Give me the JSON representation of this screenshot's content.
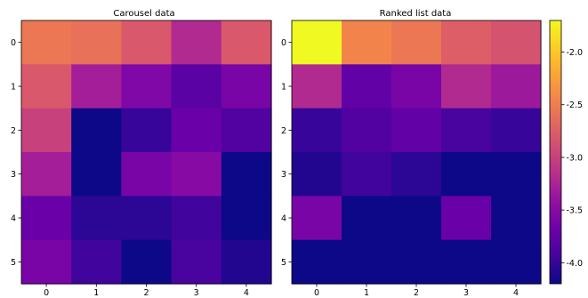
{
  "chart_data": [
    {
      "type": "heatmap",
      "title": "Carousel data",
      "x_ticks": [
        "0",
        "1",
        "2",
        "3",
        "4"
      ],
      "y_ticks": [
        "0",
        "1",
        "2",
        "3",
        "4",
        "5"
      ],
      "values": [
        [
          -2.55,
          -2.6,
          -2.8,
          -3.2,
          -2.8
        ],
        [
          -2.8,
          -3.3,
          -3.55,
          -3.8,
          -3.6
        ],
        [
          -3.0,
          -4.2,
          -4.0,
          -3.7,
          -3.85
        ],
        [
          -3.3,
          -4.2,
          -3.6,
          -3.5,
          -4.2
        ],
        [
          -3.7,
          -4.05,
          -4.05,
          -3.95,
          -4.2
        ],
        [
          -3.6,
          -3.95,
          -4.2,
          -3.9,
          -4.1
        ]
      ]
    },
    {
      "type": "heatmap",
      "title": "Ranked list data",
      "x_ticks": [
        "0",
        "1",
        "2",
        "3",
        "4"
      ],
      "y_ticks": [
        "0",
        "1",
        "2",
        "3",
        "4",
        "5"
      ],
      "values": [
        [
          -1.7,
          -2.45,
          -2.55,
          -2.75,
          -2.85
        ],
        [
          -3.2,
          -3.75,
          -3.6,
          -3.2,
          -3.35
        ],
        [
          -4.0,
          -3.85,
          -3.75,
          -3.9,
          -4.0
        ],
        [
          -4.1,
          -3.95,
          -4.05,
          -4.2,
          -4.2
        ],
        [
          -3.6,
          -4.2,
          -4.2,
          -3.7,
          -4.2
        ],
        [
          -4.2,
          -4.2,
          -4.2,
          -4.2,
          -4.2
        ]
      ]
    }
  ],
  "colorbar": {
    "colormap": "plasma",
    "range": [
      -4.2,
      -1.7
    ],
    "ticks": [
      "-2.0",
      "-2.5",
      "-3.0",
      "-3.5",
      "-4.0"
    ],
    "tick_values": [
      -2.0,
      -2.5,
      -3.0,
      -3.5,
      -4.0
    ]
  }
}
